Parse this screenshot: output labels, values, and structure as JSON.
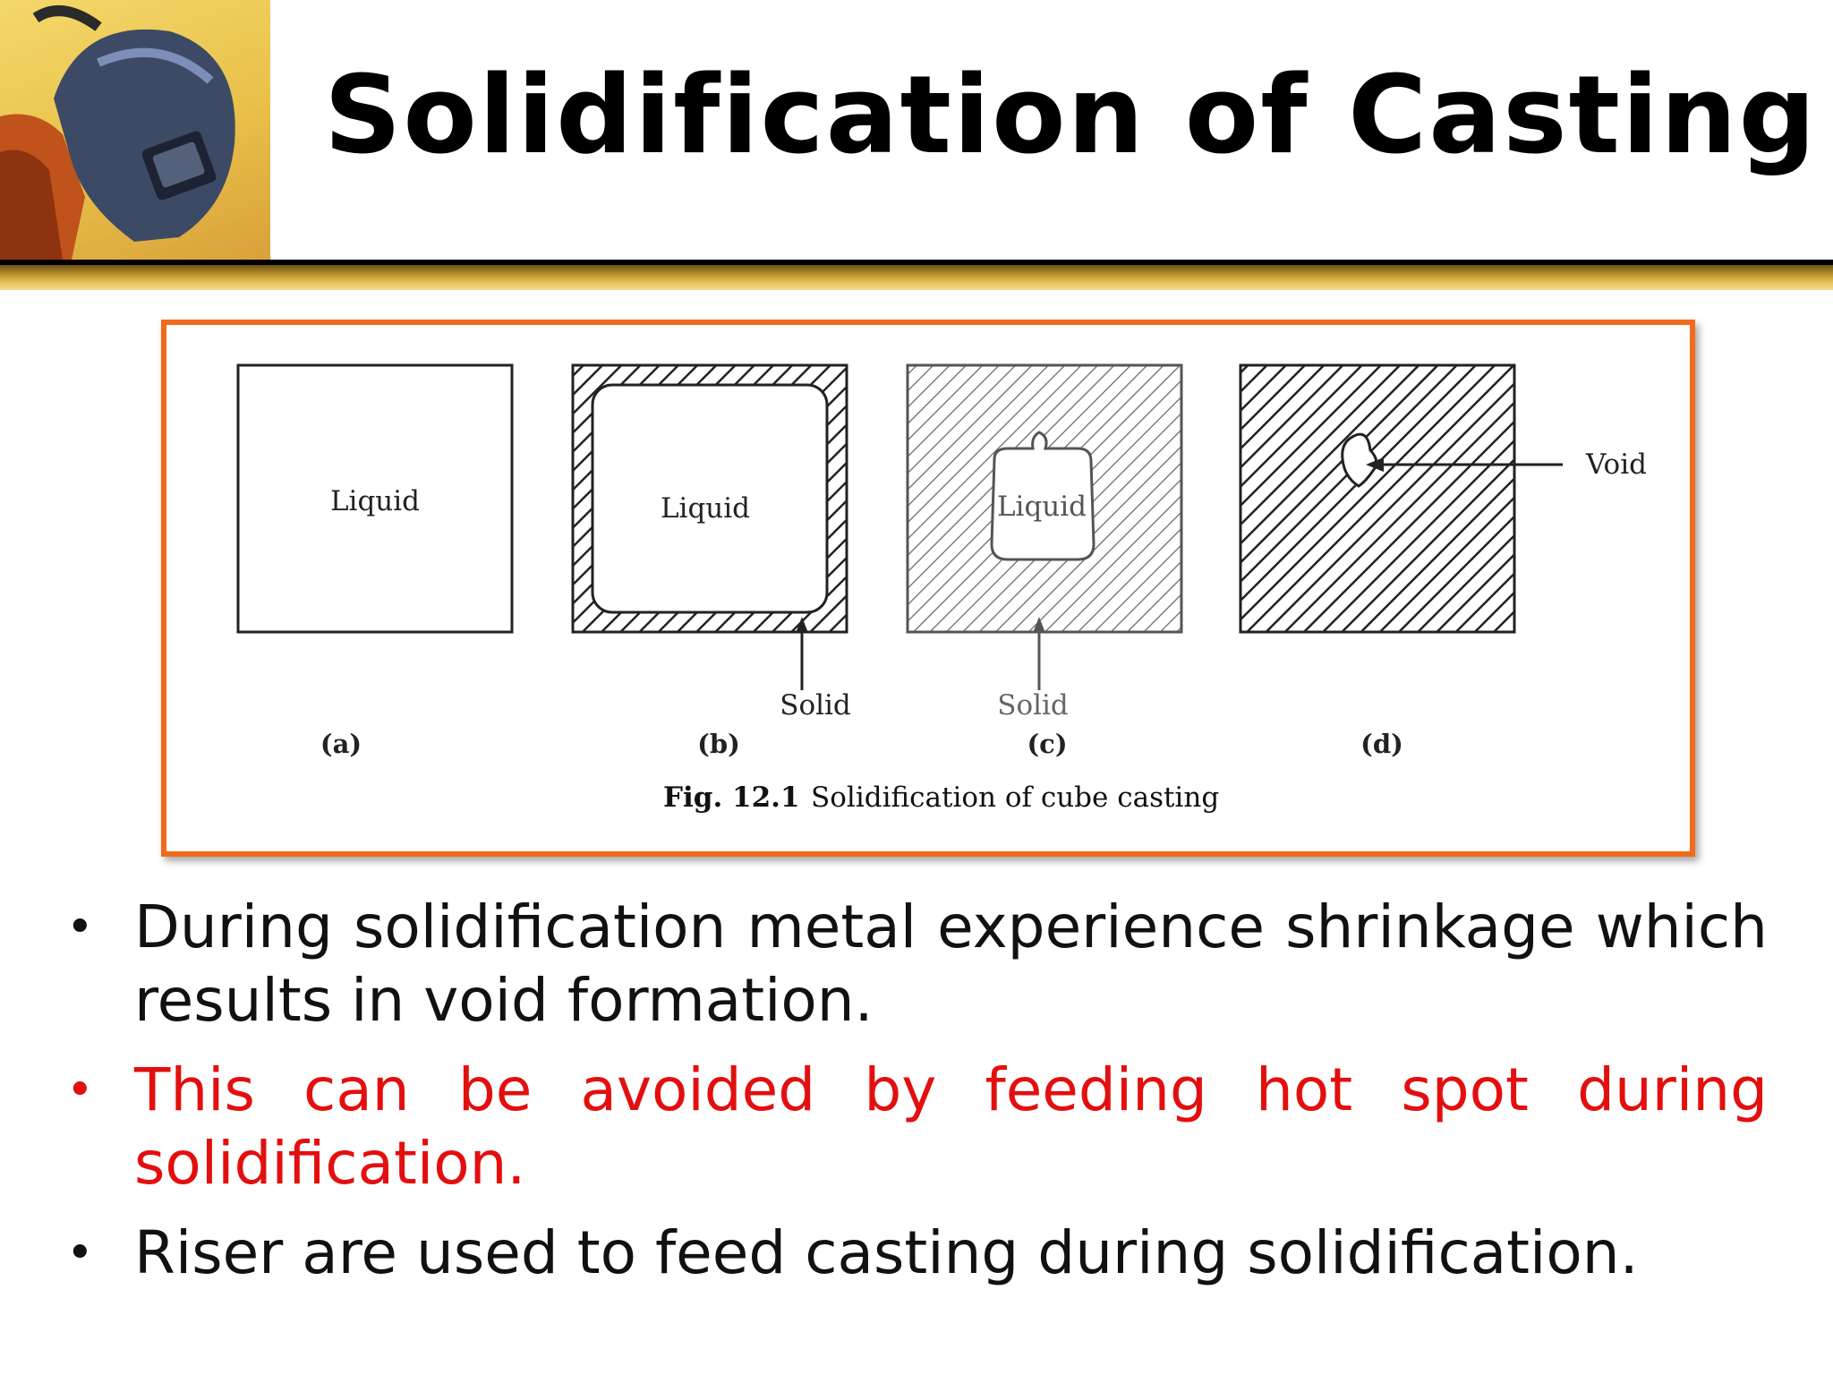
{
  "title": "Solidification of Casting",
  "figure": {
    "panels": [
      {
        "label": "(a)",
        "inner_text": "Liquid",
        "callout": ""
      },
      {
        "label": "(b)",
        "inner_text": "Liquid",
        "callout": "Solid"
      },
      {
        "label": "(c)",
        "inner_text": "Liquid",
        "callout": "Solid"
      },
      {
        "label": "(d)",
        "inner_text": "",
        "callout": "Void"
      }
    ],
    "caption_number": "Fig. 12.1",
    "caption_text": "Solidification of cube casting"
  },
  "bullets": [
    {
      "text": "During solidification metal experience shrinkage which results in void formation.",
      "color": "#111111"
    },
    {
      "text": "This can be avoided by feeding hot spot during solidification.",
      "color": "#e30f0f"
    },
    {
      "text": "Riser are used to feed casting during solidification.",
      "color": "#111111"
    }
  ],
  "icons": [
    "welder-helmet-icon",
    "bullet-icon"
  ]
}
